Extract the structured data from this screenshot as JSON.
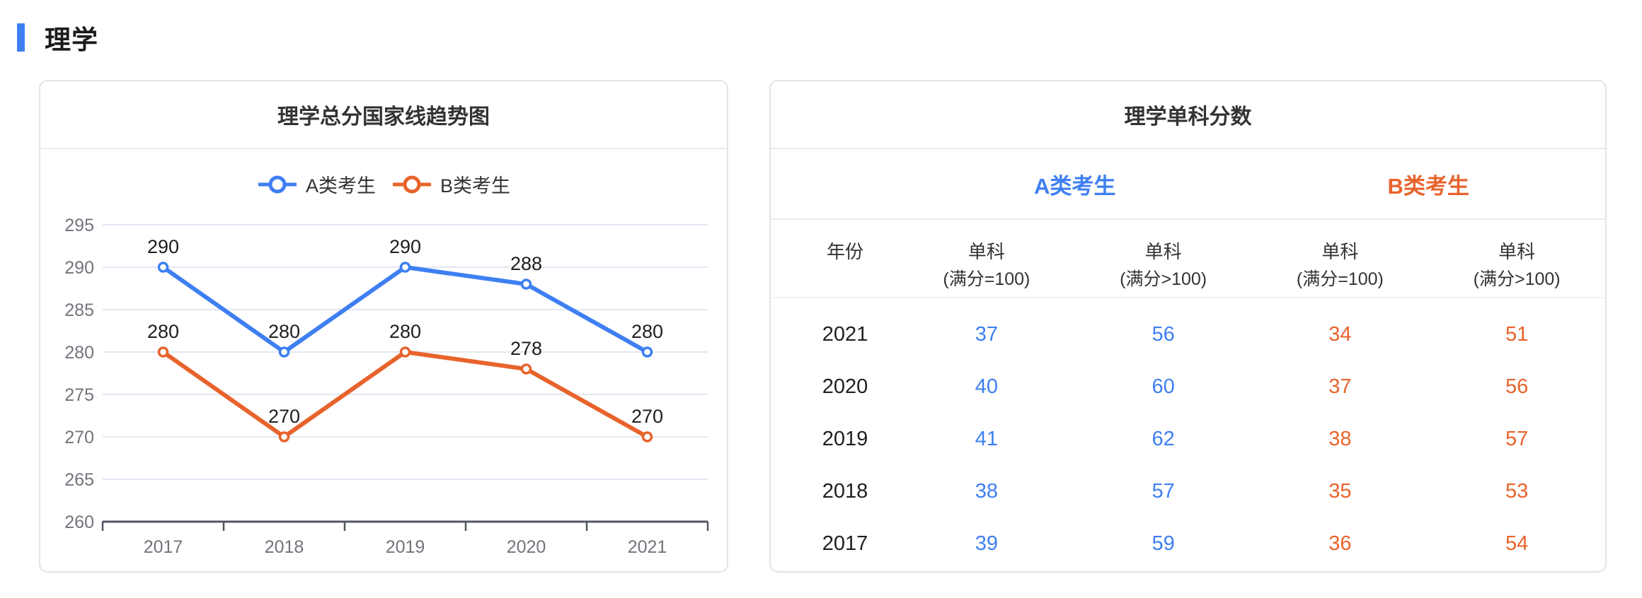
{
  "section": {
    "title": "理学",
    "accent_color": "#3E7FF2"
  },
  "chart_data": [
    {
      "type": "line",
      "title": "理学总分国家线趋势图",
      "x": [
        "2017",
        "2018",
        "2019",
        "2020",
        "2021"
      ],
      "series": [
        {
          "name": "A类考生",
          "color": "#3E7FF2",
          "values": [
            290,
            280,
            290,
            288,
            280
          ]
        },
        {
          "name": "B类考生",
          "color": "#E8632C",
          "values": [
            280,
            270,
            280,
            278,
            270
          ]
        }
      ],
      "xlabel": "",
      "ylabel": "",
      "ylim": [
        260,
        295
      ],
      "ytick_step": 5,
      "yticks": [
        260,
        265,
        270,
        275,
        280,
        285,
        290,
        295
      ],
      "grid": true,
      "legend_position": "top",
      "point_labels_shown": true
    },
    {
      "type": "table",
      "title": "理学单科分数",
      "group_headers": [
        {
          "label": "A类考生",
          "color": "#3E7FF2",
          "span": 2
        },
        {
          "label": "B类考生",
          "color": "#E8632C",
          "span": 2
        }
      ],
      "columns": [
        {
          "label": "年份",
          "sub": ""
        },
        {
          "label": "单科",
          "sub": "(满分=100)"
        },
        {
          "label": "单科",
          "sub": "(满分>100)"
        },
        {
          "label": "单科",
          "sub": "(满分=100)"
        },
        {
          "label": "单科",
          "sub": "(满分>100)"
        }
      ],
      "rows": [
        {
          "year": "2021",
          "values": [
            37,
            56,
            34,
            51
          ]
        },
        {
          "year": "2020",
          "values": [
            40,
            60,
            37,
            56
          ]
        },
        {
          "year": "2019",
          "values": [
            41,
            62,
            38,
            57
          ]
        },
        {
          "year": "2018",
          "values": [
            38,
            57,
            35,
            53
          ]
        },
        {
          "year": "2017",
          "values": [
            39,
            59,
            36,
            54
          ]
        }
      ]
    }
  ]
}
